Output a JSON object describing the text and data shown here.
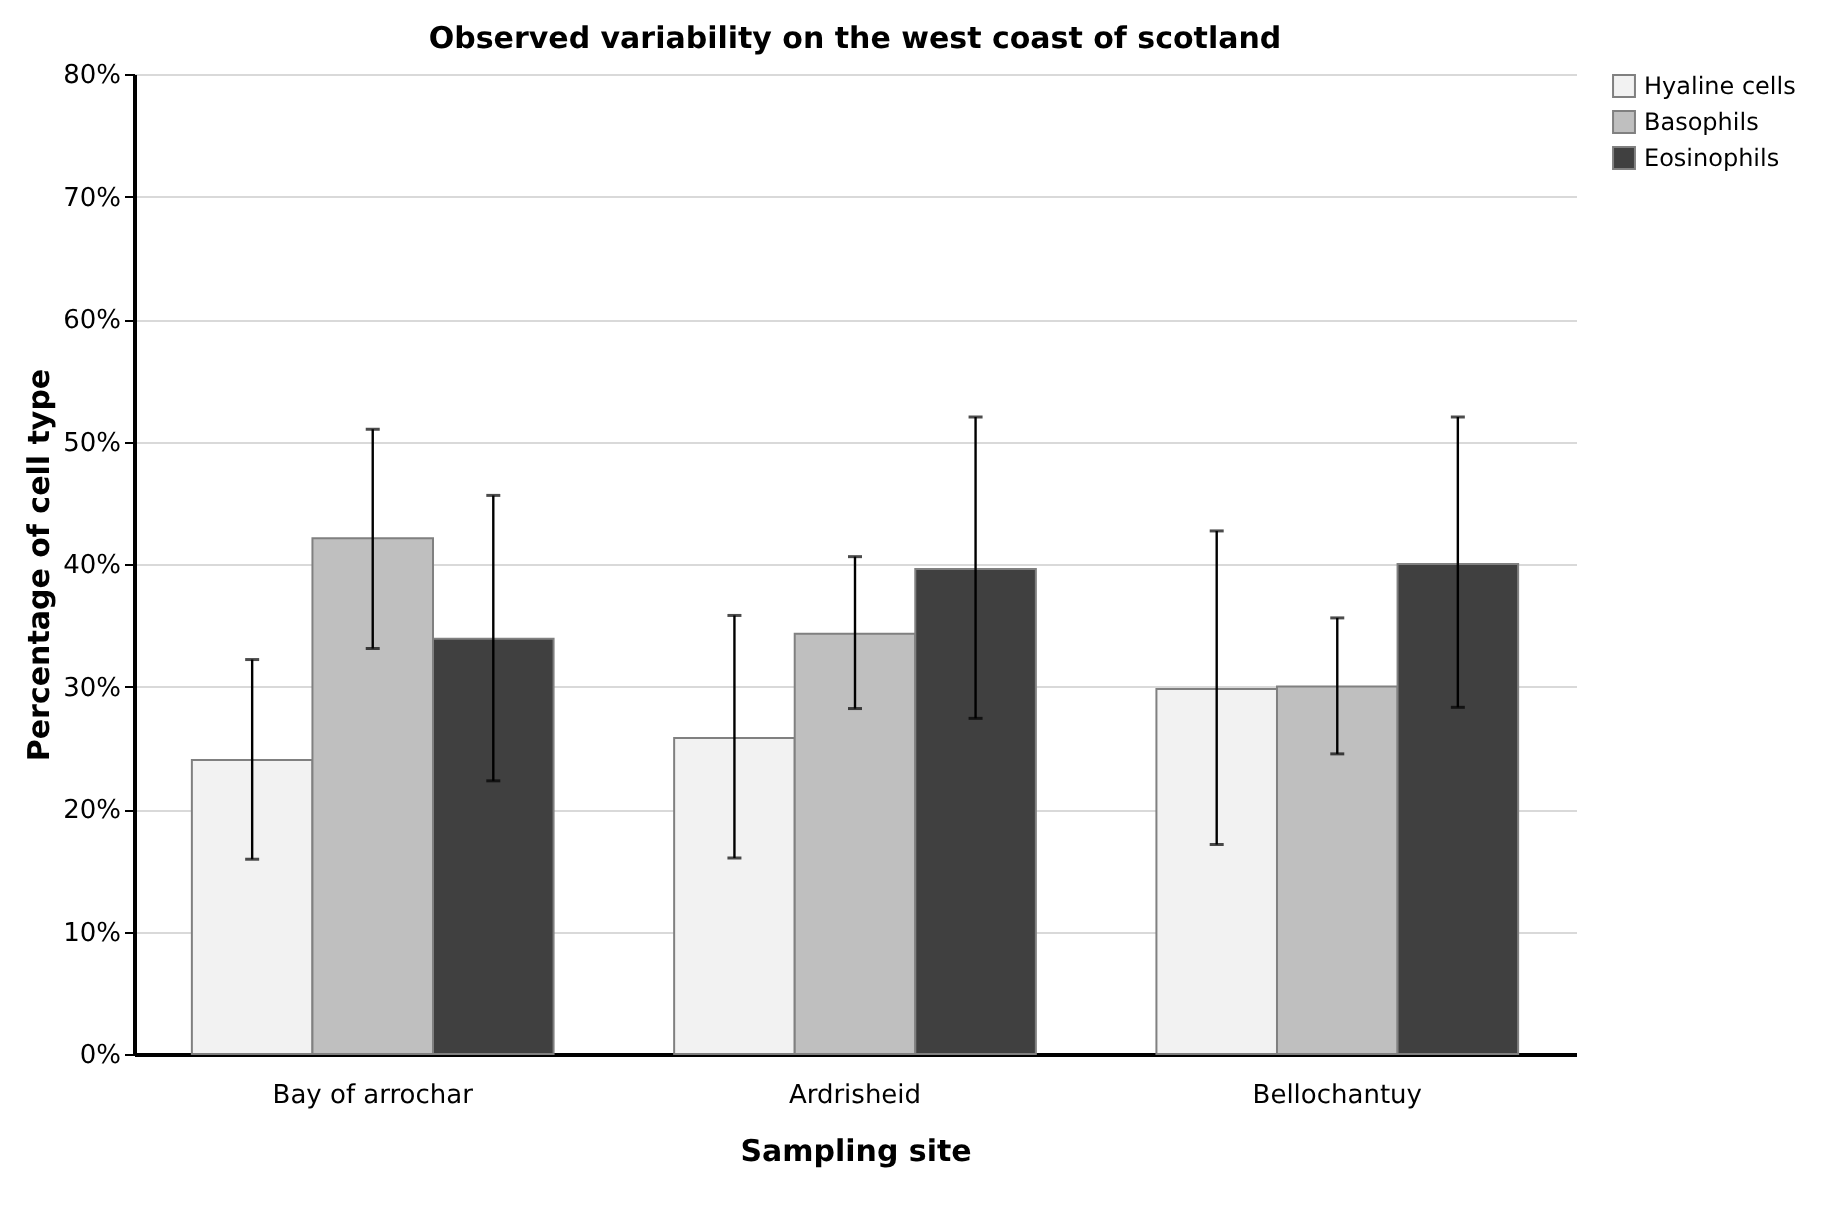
{
  "chart_data": {
    "type": "bar",
    "title": "Observed variability on the west coast of scotland",
    "xlabel": "Sampling site",
    "ylabel": "Percentage of cell type",
    "categories": [
      "Bay of arrochar",
      "Ardrisheid",
      "Bellochantuy"
    ],
    "series": [
      {
        "name": "Hyaline cells",
        "color": "#f2f2f2",
        "values": [
          24,
          25.8,
          29.8
        ],
        "errors": [
          [
            15.9,
            32.2
          ],
          [
            16.0,
            35.8
          ],
          [
            17.1,
            42.7
          ]
        ]
      },
      {
        "name": "Basophils",
        "color": "#bfbfbf",
        "values": [
          42.1,
          34.3,
          30
        ],
        "errors": [
          [
            33.1,
            51
          ],
          [
            28.2,
            40.6
          ],
          [
            24.5,
            35.6
          ]
        ]
      },
      {
        "name": "Eosinophils",
        "color": "#404040",
        "values": [
          33.9,
          39.6,
          40
        ],
        "errors": [
          [
            22.3,
            45.6
          ],
          [
            27.4,
            52
          ],
          [
            28.3,
            52
          ]
        ]
      }
    ],
    "ylim": [
      0,
      80
    ],
    "yticks": [
      {
        "value": 0,
        "label": "0%"
      },
      {
        "value": 10,
        "label": "10%"
      },
      {
        "value": 20,
        "label": "20%"
      },
      {
        "value": 30,
        "label": "30%"
      },
      {
        "value": 40,
        "label": "40%"
      },
      {
        "value": 50,
        "label": "50%"
      },
      {
        "value": 60,
        "label": "60%"
      },
      {
        "value": 70,
        "label": "70%"
      },
      {
        "value": 80,
        "label": "80%"
      }
    ],
    "grid": "y",
    "legend": "right"
  }
}
